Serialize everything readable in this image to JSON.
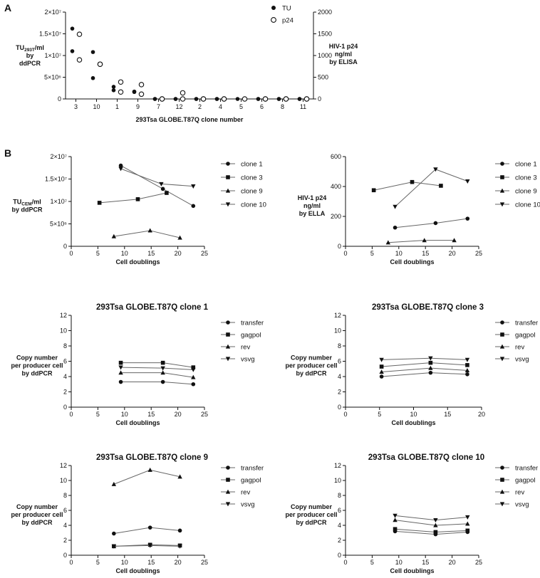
{
  "panels": {
    "a": "A",
    "b": "B"
  },
  "chart_data": [
    {
      "type": "scatter",
      "id": "A",
      "xlabel": "293Tsa GLOBE.T87Q clone number",
      "ylabel": [
        "TU293T/ml",
        "by",
        "ddPCR"
      ],
      "y2label": [
        "HIV-1 p24",
        "ng/ml",
        "by ELISA"
      ],
      "categories": [
        "3",
        "10",
        "1",
        "9",
        "7",
        "12",
        "2",
        "4",
        "5",
        "6",
        "8",
        "11"
      ],
      "ylim": [
        0,
        20000000
      ],
      "yticks": [
        "0",
        "5×10⁶",
        "1×10⁷",
        "1.5×10⁷",
        "2×10⁷"
      ],
      "y2lim": [
        0,
        2000
      ],
      "y2ticks": [
        "0",
        "500",
        "1000",
        "1500",
        "2000"
      ],
      "legend": [
        {
          "name": "TU",
          "marker": "filled-circle"
        },
        {
          "name": "p24",
          "marker": "open-circle"
        }
      ],
      "series": [
        {
          "name": "TU",
          "axis": "left",
          "points": [
            {
              "cat": 0,
              "off": -1,
              "y": 16200000
            },
            {
              "cat": 0,
              "off": -1,
              "y": 11000000
            },
            {
              "cat": 1,
              "off": -1,
              "y": 10800000
            },
            {
              "cat": 1,
              "off": -1,
              "y": 4800000
            },
            {
              "cat": 2,
              "off": -1,
              "y": 2800000
            },
            {
              "cat": 2,
              "off": -1,
              "y": 2000000
            },
            {
              "cat": 3,
              "off": -1,
              "y": 1700000
            },
            {
              "cat": 3,
              "off": -1,
              "y": 1600000
            },
            {
              "cat": 4,
              "off": -1,
              "y": 0
            },
            {
              "cat": 4,
              "off": -1,
              "y": 0
            },
            {
              "cat": 5,
              "off": -1,
              "y": 0
            },
            {
              "cat": 5,
              "off": -1,
              "y": 0
            },
            {
              "cat": 6,
              "off": -1,
              "y": 0
            },
            {
              "cat": 6,
              "off": -1,
              "y": 0
            },
            {
              "cat": 7,
              "off": -1,
              "y": 0
            },
            {
              "cat": 7,
              "off": -1,
              "y": 0
            },
            {
              "cat": 8,
              "off": -1,
              "y": 0
            },
            {
              "cat": 9,
              "off": -1,
              "y": 0
            },
            {
              "cat": 9,
              "off": -1,
              "y": 0
            },
            {
              "cat": 10,
              "off": -1,
              "y": 0
            },
            {
              "cat": 10,
              "off": -1,
              "y": 0
            },
            {
              "cat": 11,
              "off": -1,
              "y": 0
            },
            {
              "cat": 11,
              "off": -1,
              "y": 0
            }
          ]
        },
        {
          "name": "p24",
          "axis": "right",
          "points": [
            {
              "cat": 0,
              "off": 1,
              "y": 1490
            },
            {
              "cat": 0,
              "off": 1,
              "y": 900
            },
            {
              "cat": 1,
              "off": 1,
              "y": 800
            },
            {
              "cat": 1,
              "off": 1,
              "y": 800
            },
            {
              "cat": 2,
              "off": 1,
              "y": 390
            },
            {
              "cat": 2,
              "off": 1,
              "y": 160
            },
            {
              "cat": 3,
              "off": 1,
              "y": 330
            },
            {
              "cat": 3,
              "off": 1,
              "y": 110
            },
            {
              "cat": 4,
              "off": 1,
              "y": 0
            },
            {
              "cat": 4,
              "off": 1,
              "y": 0
            },
            {
              "cat": 5,
              "off": 1,
              "y": 140
            },
            {
              "cat": 5,
              "off": 1,
              "y": 0
            },
            {
              "cat": 6,
              "off": 1,
              "y": 0
            },
            {
              "cat": 6,
              "off": 1,
              "y": 0
            },
            {
              "cat": 7,
              "off": 1,
              "y": 0
            },
            {
              "cat": 7,
              "off": 1,
              "y": 0
            },
            {
              "cat": 8,
              "off": 1,
              "y": 0
            },
            {
              "cat": 9,
              "off": 1,
              "y": 0
            },
            {
              "cat": 9,
              "off": 1,
              "y": 0
            },
            {
              "cat": 10,
              "off": 1,
              "y": 0
            },
            {
              "cat": 10,
              "off": 1,
              "y": 0
            },
            {
              "cat": 11,
              "off": 1,
              "y": 0
            },
            {
              "cat": 11,
              "off": 1,
              "y": 0
            }
          ]
        }
      ]
    },
    {
      "type": "line",
      "id": "B1",
      "title": "",
      "xlabel": "Cell doublings",
      "ylabel": [
        "TUCEM/ml",
        "by ddPCR"
      ],
      "xlim": [
        0,
        25
      ],
      "xticks": [
        0,
        5,
        10,
        15,
        20,
        25
      ],
      "ylim": [
        0,
        20000000
      ],
      "yticks": [
        "0",
        "5×10⁶",
        "1×10⁷",
        "1.5×10⁷",
        "2×10⁷"
      ],
      "series": [
        {
          "name": "clone 1",
          "marker": "circle",
          "x": [
            9.3,
            17.2,
            22.9
          ],
          "y": [
            18000000,
            12800000,
            9000000
          ]
        },
        {
          "name": "clone 3",
          "marker": "square",
          "x": [
            5.3,
            12.5,
            17.9
          ],
          "y": [
            9700000,
            10500000,
            11900000
          ]
        },
        {
          "name": "clone 9",
          "marker": "triangle",
          "x": [
            8.0,
            14.8,
            20.4
          ],
          "y": [
            2200000,
            3500000,
            1900000
          ]
        },
        {
          "name": "clone 10",
          "marker": "triangle-down",
          "x": [
            9.3,
            16.9,
            22.9
          ],
          "y": [
            17300000,
            13900000,
            13400000
          ]
        }
      ]
    },
    {
      "type": "line",
      "id": "B2",
      "title": "",
      "xlabel": "Cell doublings",
      "ylabel": [
        "HIV-1 p24",
        "ng/ml",
        "by ELLA"
      ],
      "xlim": [
        0,
        25
      ],
      "xticks": [
        0,
        5,
        10,
        15,
        20,
        25
      ],
      "ylim": [
        0,
        600
      ],
      "yticks": [
        "0",
        "200",
        "400",
        "600"
      ],
      "series": [
        {
          "name": "clone 1",
          "marker": "circle",
          "x": [
            9.3,
            16.9,
            22.9
          ],
          "y": [
            125,
            155,
            185
          ]
        },
        {
          "name": "clone 3",
          "marker": "square",
          "x": [
            5.3,
            12.5,
            17.9
          ],
          "y": [
            375,
            430,
            405
          ]
        },
        {
          "name": "clone 9",
          "marker": "triangle",
          "x": [
            8.0,
            14.8,
            20.4
          ],
          "y": [
            25,
            40,
            40
          ]
        },
        {
          "name": "clone 10",
          "marker": "triangle-down",
          "x": [
            9.3,
            16.9,
            22.9
          ],
          "y": [
            265,
            515,
            435
          ]
        }
      ]
    },
    {
      "type": "line",
      "id": "C1",
      "title": "293Tsa GLOBE.T87Q clone 1",
      "xlabel": "Cell doublings",
      "ylabel": [
        "Copy number",
        "per producer cell",
        "by ddPCR"
      ],
      "xlim": [
        0,
        25
      ],
      "xticks": [
        0,
        5,
        10,
        15,
        20,
        25
      ],
      "ylim": [
        0,
        12
      ],
      "yticks": [
        "0",
        "2",
        "4",
        "6",
        "8",
        "10",
        "12"
      ],
      "series": [
        {
          "name": "transfer",
          "marker": "circle",
          "x": [
            9.3,
            17.2,
            22.9
          ],
          "y": [
            3.3,
            3.3,
            3.0
          ]
        },
        {
          "name": "gagpol",
          "marker": "square",
          "x": [
            9.3,
            17.2,
            22.9
          ],
          "y": [
            5.8,
            5.8,
            5.2
          ]
        },
        {
          "name": "rev",
          "marker": "triangle",
          "x": [
            9.3,
            17.2,
            22.9
          ],
          "y": [
            4.5,
            4.5,
            3.9
          ]
        },
        {
          "name": "vsvg",
          "marker": "triangle-down",
          "x": [
            9.3,
            17.2,
            22.9
          ],
          "y": [
            5.2,
            5.1,
            4.9
          ]
        }
      ]
    },
    {
      "type": "line",
      "id": "C3",
      "title": "293Tsa GLOBE.T87Q clone 3",
      "xlabel": "Cell doublings",
      "ylabel": [
        "Copy number",
        "per producer cell",
        "by ddPCR"
      ],
      "xlim": [
        0,
        20
      ],
      "xticks": [
        0,
        5,
        10,
        15,
        20
      ],
      "ylim": [
        0,
        12
      ],
      "yticks": [
        "0",
        "2",
        "4",
        "6",
        "8",
        "10",
        "12"
      ],
      "series": [
        {
          "name": "transfer",
          "marker": "circle",
          "x": [
            5.3,
            12.5,
            17.9
          ],
          "y": [
            4.0,
            4.5,
            4.3
          ]
        },
        {
          "name": "gagpol",
          "marker": "square",
          "x": [
            5.3,
            12.5,
            17.9
          ],
          "y": [
            5.3,
            5.8,
            5.5
          ]
        },
        {
          "name": "rev",
          "marker": "triangle",
          "x": [
            5.3,
            12.5,
            17.9
          ],
          "y": [
            4.6,
            5.1,
            4.8
          ]
        },
        {
          "name": "vsvg",
          "marker": "triangle-down",
          "x": [
            5.3,
            12.5,
            17.9
          ],
          "y": [
            6.2,
            6.4,
            6.2
          ]
        }
      ]
    },
    {
      "type": "line",
      "id": "C9",
      "title": "293Tsa GLOBE.T87Q clone 9",
      "xlabel": "Cell doublings",
      "ylabel": [
        "Copy number",
        "per producer cell",
        "by ddPCR"
      ],
      "xlim": [
        0,
        25
      ],
      "xticks": [
        0,
        5,
        10,
        15,
        20,
        25
      ],
      "ylim": [
        0,
        12
      ],
      "yticks": [
        "0",
        "2",
        "4",
        "6",
        "8",
        "10",
        "12"
      ],
      "series": [
        {
          "name": "transfer",
          "marker": "circle",
          "x": [
            8.0,
            14.8,
            20.4
          ],
          "y": [
            2.9,
            3.7,
            3.3
          ]
        },
        {
          "name": "gagpol",
          "marker": "square",
          "x": [
            8.0,
            14.8,
            20.4
          ],
          "y": [
            1.2,
            1.4,
            1.3
          ]
        },
        {
          "name": "rev",
          "marker": "triangle",
          "x": [
            8.0,
            14.8,
            20.4
          ],
          "y": [
            9.5,
            11.4,
            10.5
          ]
        },
        {
          "name": "vsvg",
          "marker": "triangle-down",
          "x": [
            8.0,
            14.8,
            20.4
          ],
          "y": [
            1.2,
            1.3,
            1.2
          ]
        }
      ]
    },
    {
      "type": "line",
      "id": "C10",
      "title": "293Tsa GLOBE.T87Q clone 10",
      "xlabel": "Cell doublings",
      "ylabel": [
        "Copy number",
        "per producer cell",
        "by ddPCR"
      ],
      "xlim": [
        0,
        25
      ],
      "xticks": [
        0,
        5,
        10,
        15,
        20,
        25
      ],
      "ylim": [
        0,
        12
      ],
      "yticks": [
        "0",
        "2",
        "4",
        "6",
        "8",
        "10",
        "12"
      ],
      "series": [
        {
          "name": "transfer",
          "marker": "circle",
          "x": [
            9.3,
            16.9,
            22.9
          ],
          "y": [
            3.2,
            2.8,
            3.1
          ]
        },
        {
          "name": "gagpol",
          "marker": "square",
          "x": [
            9.3,
            16.9,
            22.9
          ],
          "y": [
            3.5,
            3.1,
            3.3
          ]
        },
        {
          "name": "rev",
          "marker": "triangle",
          "x": [
            9.3,
            16.9,
            22.9
          ],
          "y": [
            4.7,
            4.0,
            4.2
          ]
        },
        {
          "name": "vsvg",
          "marker": "triangle-down",
          "x": [
            9.3,
            16.9,
            22.9
          ],
          "y": [
            5.3,
            4.7,
            5.1
          ]
        }
      ]
    }
  ]
}
